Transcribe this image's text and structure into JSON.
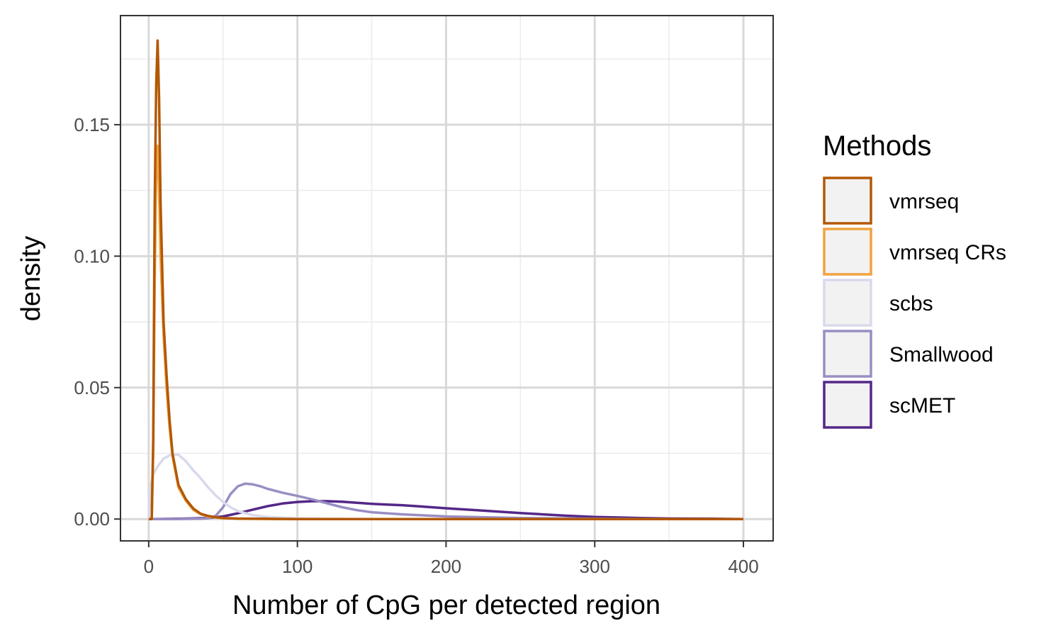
{
  "chart_data": {
    "type": "line",
    "subtype": "density",
    "xlabel": "Number of CpG per detected region",
    "ylabel": "density",
    "xlim": [
      -19,
      420
    ],
    "ylim": [
      -0.0083,
      0.1915
    ],
    "x_ticks": [
      0,
      100,
      200,
      300,
      400
    ],
    "x_tick_labels": [
      "0",
      "100",
      "200",
      "300",
      "400"
    ],
    "y_ticks": [
      0,
      0.05,
      0.1,
      0.15
    ],
    "y_tick_labels": [
      "0.00",
      "0.05",
      "0.10",
      "0.15"
    ],
    "grid": true,
    "legend": {
      "title": "Methods",
      "position": "right"
    },
    "series": [
      {
        "name": "vmrseq",
        "color": "#b35806",
        "x": [
          0,
          2,
          3,
          4,
          5,
          6,
          7,
          8,
          10,
          12,
          14,
          16,
          20,
          25,
          30,
          35,
          40,
          45,
          50,
          60,
          80,
          100,
          150,
          200,
          300,
          400
        ],
        "y": [
          0,
          0.0,
          0.03,
          0.12,
          0.165,
          0.182,
          0.16,
          0.12,
          0.075,
          0.055,
          0.038,
          0.025,
          0.013,
          0.0075,
          0.004,
          0.002,
          0.0012,
          0.0007,
          0.0004,
          0.0002,
          0.0001,
          0.0,
          0.0,
          0.0,
          0.0,
          0.0
        ]
      },
      {
        "name": "vmrseq CRs",
        "color": "#f1a340",
        "x": [
          0,
          2,
          3,
          4,
          5,
          6,
          7,
          8,
          10,
          12,
          14,
          16,
          20,
          25,
          30,
          35,
          40,
          45,
          50,
          60,
          80,
          100,
          150,
          200,
          300,
          400
        ],
        "y": [
          0,
          0.0,
          0.025,
          0.09,
          0.13,
          0.142,
          0.125,
          0.1,
          0.07,
          0.05,
          0.035,
          0.024,
          0.012,
          0.007,
          0.0035,
          0.0018,
          0.001,
          0.0006,
          0.0003,
          0.0001,
          0.0,
          0.0,
          0.0,
          0.0,
          0.0,
          0.0
        ]
      },
      {
        "name": "scbs",
        "color": "#d8daeb",
        "x": [
          0,
          1,
          3,
          6,
          10,
          15,
          20,
          25,
          30,
          35,
          40,
          45,
          50,
          55,
          60,
          70,
          80,
          100,
          120,
          150,
          200,
          300,
          400
        ],
        "y": [
          0.0,
          0.012,
          0.017,
          0.02,
          0.023,
          0.0245,
          0.0245,
          0.022,
          0.0185,
          0.0155,
          0.012,
          0.009,
          0.0065,
          0.0045,
          0.003,
          0.0015,
          0.0008,
          0.0003,
          0.0001,
          0.0,
          0.0,
          0.0,
          0.0
        ]
      },
      {
        "name": "Smallwood",
        "color": "#998ec3",
        "x": [
          0,
          20,
          35,
          40,
          45,
          50,
          55,
          60,
          65,
          70,
          75,
          80,
          90,
          100,
          110,
          120,
          130,
          140,
          150,
          170,
          200,
          250,
          300,
          350,
          400
        ],
        "y": [
          0.0,
          0.0,
          0.0001,
          0.0003,
          0.0012,
          0.0045,
          0.0095,
          0.0125,
          0.0135,
          0.0132,
          0.0125,
          0.0115,
          0.01,
          0.0088,
          0.0075,
          0.006,
          0.0045,
          0.0034,
          0.0026,
          0.0018,
          0.001,
          0.0004,
          0.0001,
          0.0,
          0.0
        ]
      },
      {
        "name": "scMET",
        "color": "#542788",
        "x": [
          0,
          20,
          40,
          50,
          60,
          70,
          80,
          90,
          100,
          110,
          120,
          130,
          140,
          150,
          160,
          170,
          180,
          200,
          220,
          250,
          280,
          300,
          330,
          350,
          380,
          400
        ],
        "y": [
          0.0,
          0.0001,
          0.0004,
          0.001,
          0.0022,
          0.0036,
          0.0049,
          0.0059,
          0.0065,
          0.0068,
          0.0068,
          0.0066,
          0.0062,
          0.0058,
          0.0055,
          0.0053,
          0.0049,
          0.0041,
          0.0034,
          0.0023,
          0.0013,
          0.0008,
          0.0004,
          0.0002,
          0.0001,
          0.0
        ]
      }
    ]
  }
}
